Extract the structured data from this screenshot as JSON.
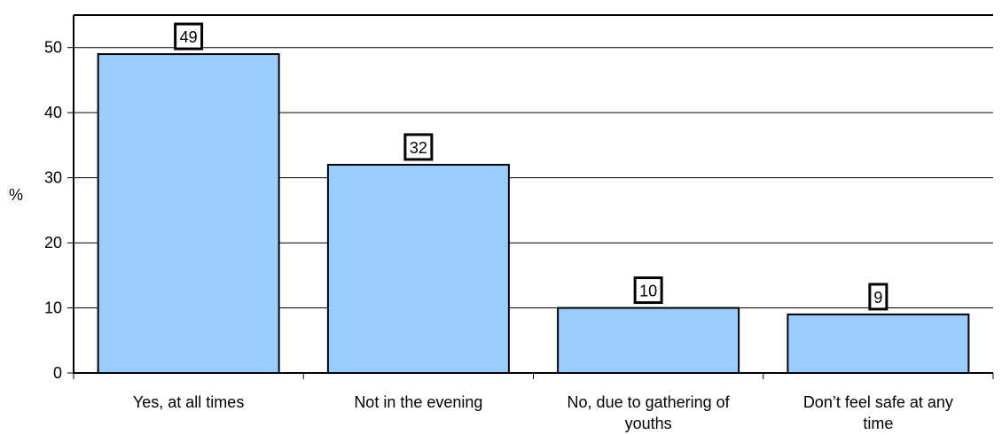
{
  "chart_data": {
    "type": "bar",
    "title": "",
    "xlabel": "",
    "ylabel": "%",
    "ylim": [
      0,
      50
    ],
    "yticks": [
      0,
      10,
      20,
      30,
      40,
      50
    ],
    "grid": true,
    "legend": "none",
    "categories": [
      [
        "Yes, at all times"
      ],
      [
        "Not in the evening"
      ],
      [
        "No, due to gathering of",
        "youths"
      ],
      [
        "Don’t feel safe at any",
        "time"
      ]
    ],
    "values": [
      49,
      32,
      10,
      9
    ],
    "data_labels": [
      "49",
      "32",
      "10",
      "9"
    ],
    "bar_color": "#99CCFF"
  }
}
